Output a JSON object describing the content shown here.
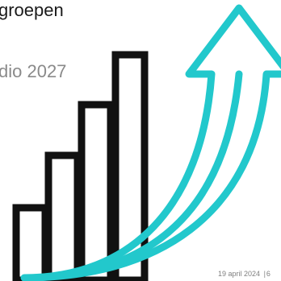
{
  "slide": {
    "title_visible": "groepen",
    "title_fragment": "",
    "subtitle_visible": "dio 2027",
    "footer": {
      "date": "19 april 2024",
      "separator": "|",
      "page_number": "6"
    }
  },
  "graphic": {
    "icon": "bar-chart-growth-arrow-icon",
    "bar_color": "#111111",
    "arrow_color": "#22c8cc",
    "bar_levels": [
      1,
      2,
      3,
      4
    ]
  }
}
